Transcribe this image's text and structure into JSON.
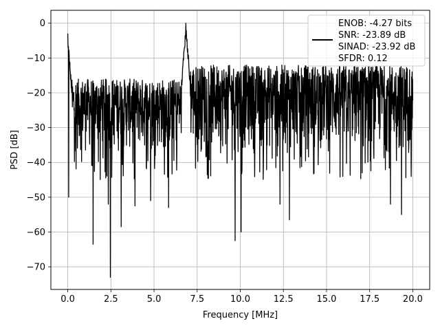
{
  "chart_data": {
    "type": "line",
    "title": "",
    "xlabel": "Frequency [MHz]",
    "ylabel": "PSD [dB]",
    "xlim": [
      -0.98,
      20.98
    ],
    "ylim": [
      -76.5,
      3.7
    ],
    "xticks": [
      0.0,
      2.5,
      5.0,
      7.5,
      10.0,
      12.5,
      15.0,
      17.5,
      20.0
    ],
    "xtick_labels": [
      "0.0",
      "2.5",
      "5.0",
      "7.5",
      "10.0",
      "12.5",
      "15.0",
      "17.5",
      "20.0"
    ],
    "yticks": [
      0,
      -10,
      -20,
      -30,
      -40,
      -50,
      -60,
      -70
    ],
    "ytick_labels": [
      "0",
      "−10",
      "−20",
      "−30",
      "−40",
      "−50",
      "−60",
      "−70"
    ],
    "grid": true,
    "line_color": "#000000",
    "legend_position": "top-right",
    "legend": {
      "lines": [
        "ENOB: -4.27 bits",
        "SNR: -23.89 dB",
        "SINAD: -23.92 dB",
        "SFDR: 0.12"
      ]
    },
    "series": [
      {
        "x_range": [
          0.0,
          20.0
        ],
        "samples": 1500,
        "noise_band": {
          "segments": [
            {
              "x": [
                0.0,
                7.0
              ],
              "top": -16,
              "bottom": -38
            },
            {
              "x": [
                7.0,
                20.0
              ],
              "top": -12,
              "bottom": -38
            }
          ]
        },
        "peaks": [
          {
            "x": 0.0,
            "y": -3
          },
          {
            "x": 6.85,
            "y": 0
          }
        ],
        "notable_minima": [
          {
            "x": 0.05,
            "y": -50
          },
          {
            "x": 1.47,
            "y": -63.5
          },
          {
            "x": 2.35,
            "y": -52
          },
          {
            "x": 2.47,
            "y": -73
          },
          {
            "x": 3.1,
            "y": -58.5
          },
          {
            "x": 3.9,
            "y": -52.5
          },
          {
            "x": 4.8,
            "y": -51
          },
          {
            "x": 5.85,
            "y": -53
          },
          {
            "x": 9.7,
            "y": -62.5
          },
          {
            "x": 10.05,
            "y": -60
          },
          {
            "x": 12.3,
            "y": -52
          },
          {
            "x": 12.85,
            "y": -56.5
          },
          {
            "x": 18.7,
            "y": -52
          },
          {
            "x": 19.35,
            "y": -55
          }
        ]
      }
    ]
  }
}
